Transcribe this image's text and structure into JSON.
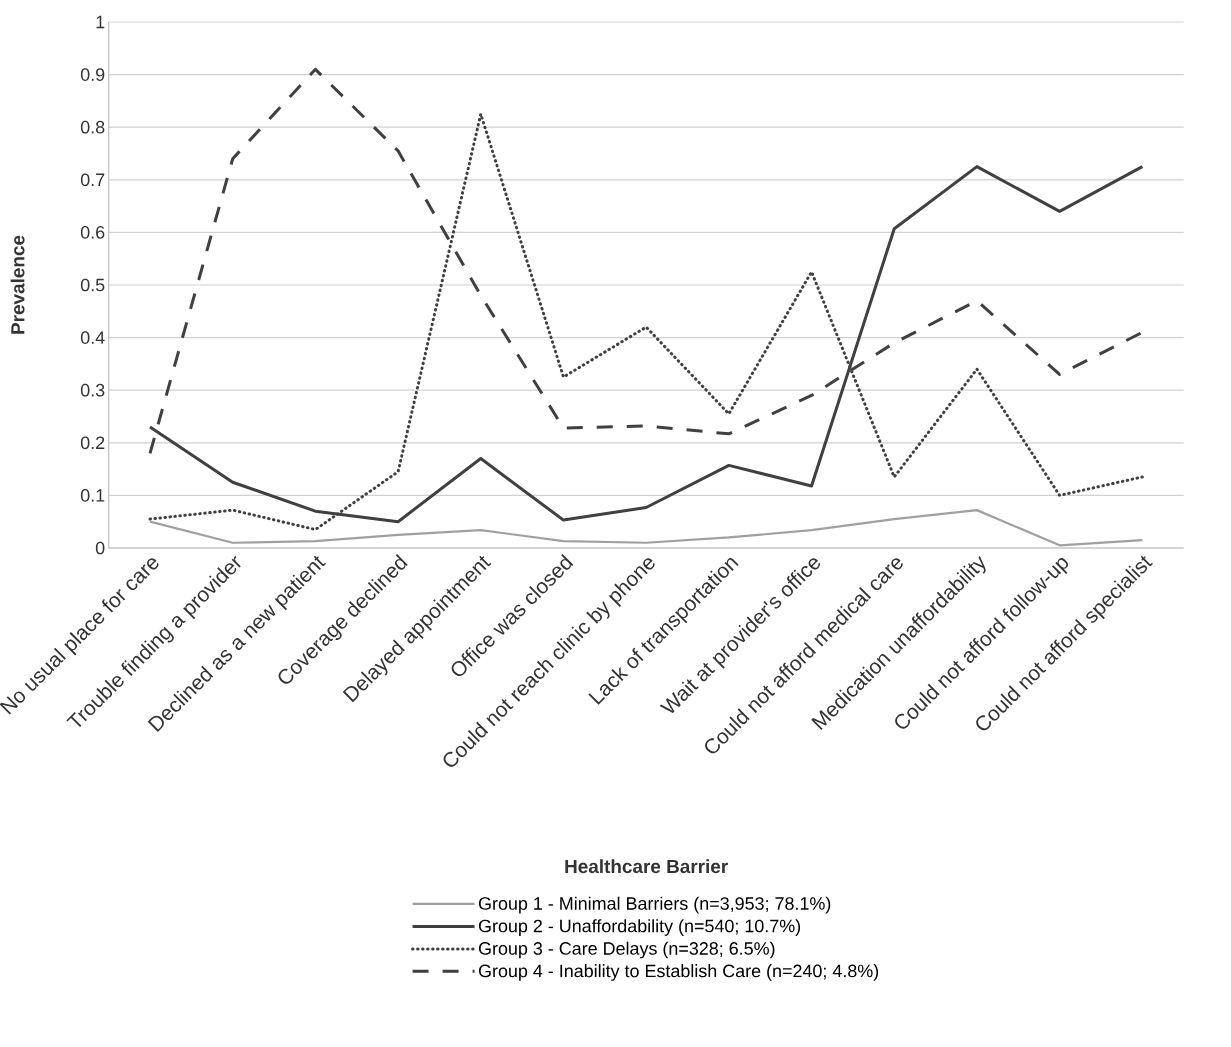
{
  "chart_data": {
    "type": "line",
    "xlabel": "Healthcare Barrier",
    "ylabel": "Prevalence",
    "categories": [
      "No usual place for care",
      "Trouble finding a provider",
      "Declined as a new patient",
      "Coverage declined",
      "Delayed appointment",
      "Office was closed",
      "Could not reach clinic by phone",
      "Lack of transportation",
      "Wait at provider's office",
      "Could not afford medical care",
      "Medication unaffordability",
      "Could not afford follow-up",
      "Could not afford specialist"
    ],
    "series": [
      {
        "name": "Group 1 - Minimal Barriers (n=3,953; 78.1%)",
        "color": "#a0a0a0",
        "line_style": "solid",
        "values": [
          0.05,
          0.01,
          0.013,
          0.025,
          0.034,
          0.013,
          0.01,
          0.02,
          0.034,
          0.055,
          0.072,
          0.005,
          0.015
        ]
      },
      {
        "name": "Group 2 - Unaffordability (n=540; 10.7%)",
        "color": "#404040",
        "line_style": "solid",
        "values": [
          0.23,
          0.125,
          0.07,
          0.05,
          0.17,
          0.053,
          0.077,
          0.157,
          0.118,
          0.607,
          0.725,
          0.64,
          0.725
        ]
      },
      {
        "name": "Group 3 - Care Delays (n=328; 6.5%)",
        "color": "#404040",
        "line_style": "dotted",
        "values": [
          0.055,
          0.072,
          0.035,
          0.145,
          0.825,
          0.325,
          0.42,
          0.255,
          0.525,
          0.135,
          0.34,
          0.1,
          0.135
        ]
      },
      {
        "name": "Group 4 - Inability to Establish Care (n=240; 4.8%)",
        "color": "#404040",
        "line_style": "dashed",
        "values": [
          0.18,
          0.74,
          0.91,
          0.755,
          0.48,
          0.228,
          0.232,
          0.217,
          0.29,
          0.39,
          0.47,
          0.33,
          0.41
        ]
      }
    ],
    "ylim": [
      0,
      1
    ],
    "yticks": [
      0,
      0.1,
      0.2,
      0.3,
      0.4,
      0.5,
      0.6,
      0.7,
      0.8,
      0.9,
      1
    ],
    "grid": "y",
    "legend": "bottom",
    "marker": "none"
  }
}
